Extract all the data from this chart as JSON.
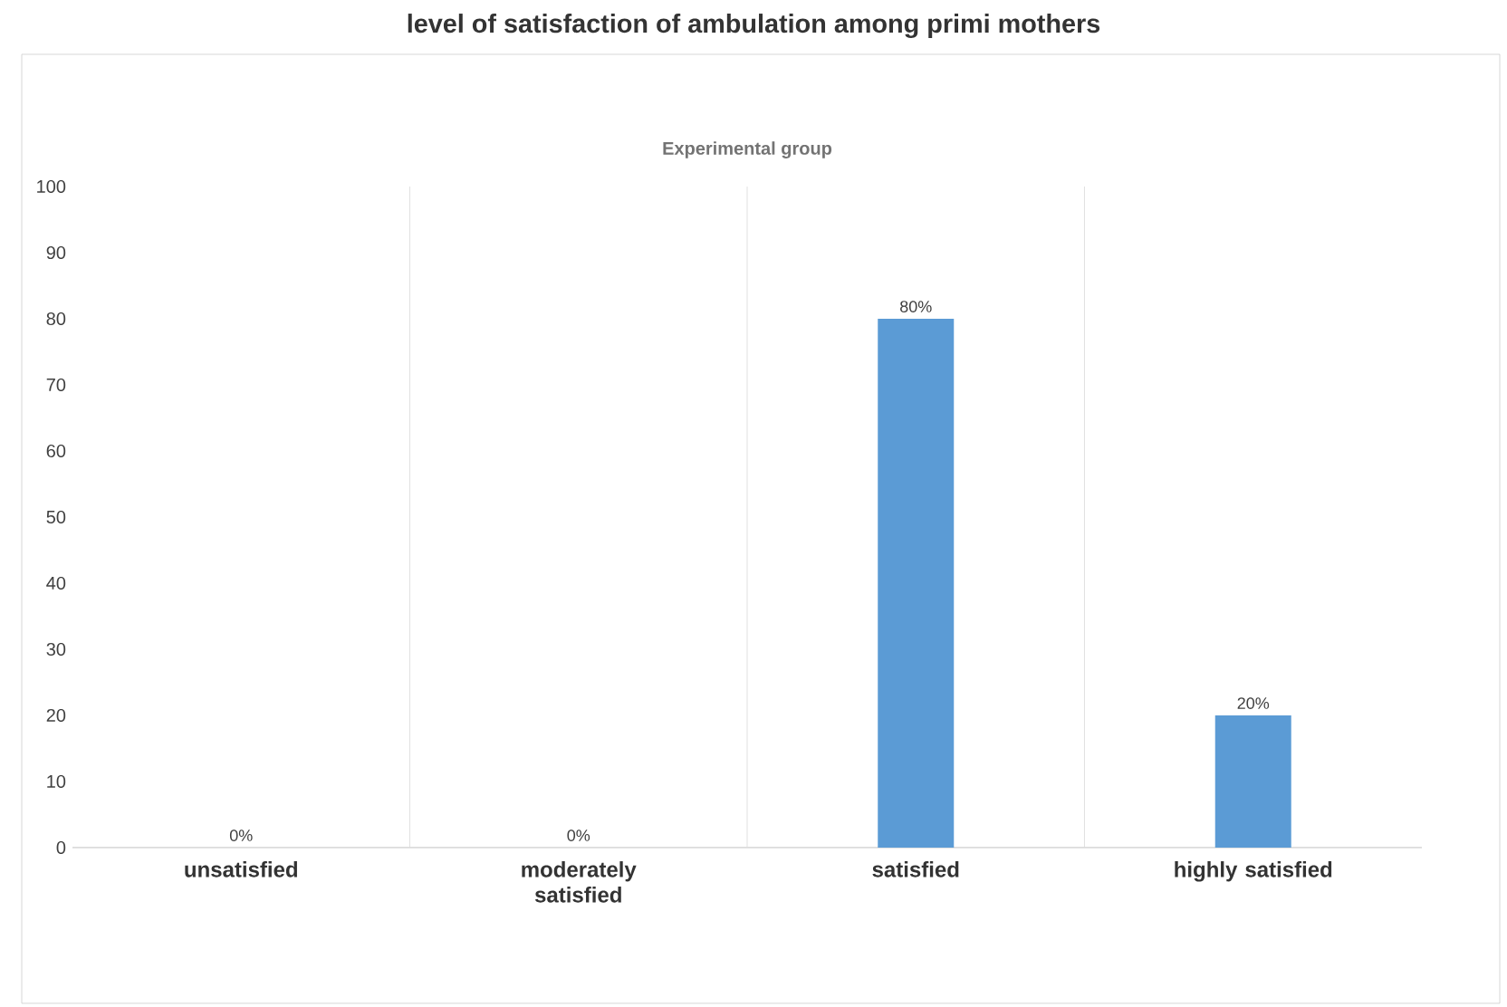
{
  "chart_data": {
    "type": "bar",
    "title": "level of satisfaction of ambulation among primi mothers",
    "subtitle": "Experimental group",
    "categories": [
      "unsatisfied",
      "moderately satisfied",
      "satisfied",
      "highly satisfied"
    ],
    "values": [
      0,
      0,
      80,
      20
    ],
    "value_labels": [
      "0%",
      "0%",
      "80%",
      "20%"
    ],
    "color": "#5b9bd5",
    "ylim": [
      0,
      100
    ],
    "yticks": [
      0,
      10,
      20,
      30,
      40,
      50,
      60,
      70,
      80,
      90,
      100
    ]
  }
}
